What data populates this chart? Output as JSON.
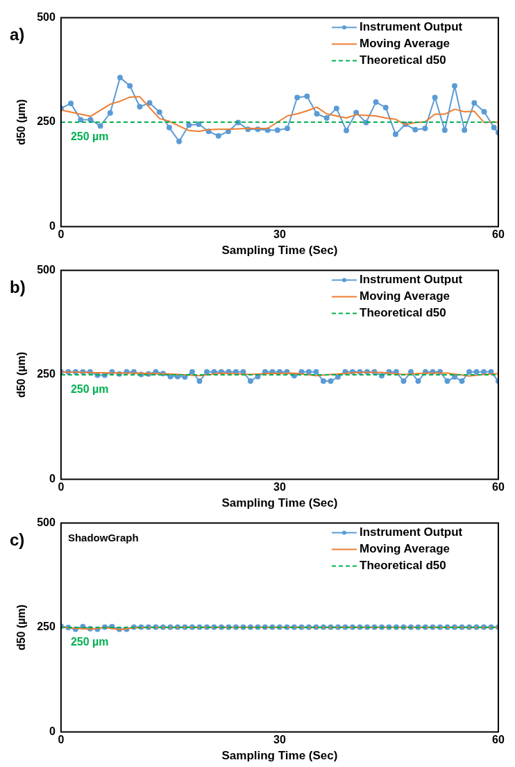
{
  "chart_data": [
    {
      "type": "line",
      "title": "a)",
      "xlabel": "Sampling Time (Sec)",
      "ylabel": "d50 (µm)",
      "xlim": [
        0,
        60
      ],
      "xticks": [
        0,
        30,
        60
      ],
      "ylim": [
        0,
        500
      ],
      "yticks": [
        0,
        250,
        500
      ],
      "grid": false,
      "legend": "top right",
      "annotations": [
        {
          "text": "250 µm",
          "y": 250
        }
      ],
      "series": [
        {
          "name": "Instrument Output",
          "color": "#5b9bd5",
          "marker": "circle",
          "line_style": "solid",
          "x": [
            0,
            1.35,
            2.7,
            4.05,
            5.4,
            6.75,
            8.1,
            9.45,
            10.8,
            12.15,
            13.5,
            14.85,
            16.2,
            17.55,
            18.9,
            20.25,
            21.6,
            22.95,
            24.3,
            25.65,
            27,
            28.35,
            29.7,
            31.05,
            32.4,
            33.75,
            35.1,
            36.45,
            37.8,
            39.15,
            40.5,
            41.85,
            43.2,
            44.55,
            45.9,
            47.25,
            48.6,
            49.95,
            51.3,
            52.65,
            54,
            55.35,
            56.7,
            58.05,
            59.4,
            60
          ],
          "values": [
            283,
            295,
            256,
            256,
            241,
            272,
            357,
            337,
            287,
            296,
            274,
            237,
            204,
            243,
            245,
            228,
            217,
            228,
            249,
            233,
            233,
            231,
            231,
            235,
            309,
            312,
            270,
            260,
            283,
            230,
            273,
            249,
            298,
            285,
            221,
            245,
            232,
            235,
            309,
            231,
            337,
            231,
            296,
            275,
            237,
            225
          ]
        },
        {
          "name": "Moving Average",
          "color": "#ed7d31",
          "marker": "none",
          "line_style": "solid",
          "x": [
            0,
            4.05,
            6.75,
            8.1,
            9.45,
            10.8,
            13.5,
            14.85,
            17.55,
            18.9,
            20.25,
            21.6,
            22.95,
            25.65,
            28.35,
            31.05,
            32.4,
            33.75,
            35.1,
            36.45,
            37.8,
            39.15,
            40.5,
            41.85,
            43.2,
            44.55,
            45.9,
            47.25,
            48.6,
            49.95,
            51.3,
            52.65,
            54,
            55.35,
            56.7,
            58.05,
            59.4,
            60
          ],
          "values": [
            279,
            264,
            293,
            300,
            310,
            311,
            259,
            252,
            230,
            228,
            232,
            233,
            233,
            235,
            235,
            265,
            270,
            277,
            286,
            270,
            265,
            260,
            268,
            266,
            265,
            260,
            257,
            244,
            249,
            251,
            269,
            269,
            281,
            275,
            276,
            249,
            251,
            249
          ]
        },
        {
          "name": "Theoretical d50",
          "color": "#00b050",
          "marker": "none",
          "line_style": "dashed",
          "x": [
            0,
            60
          ],
          "values": [
            250,
            250
          ]
        }
      ]
    },
    {
      "type": "line",
      "title": "b)",
      "xlabel": "Sampling Time (Sec)",
      "ylabel": "d50 (µm)",
      "xlim": [
        0,
        60
      ],
      "xticks": [
        0,
        30,
        60
      ],
      "ylim": [
        0,
        500
      ],
      "yticks": [
        0,
        250,
        500
      ],
      "grid": false,
      "legend": "top right",
      "annotations": [
        {
          "text": "250 µm",
          "y": 250
        }
      ],
      "series": [
        {
          "name": "Instrument Output",
          "color": "#5b9bd5",
          "marker": "circle",
          "line_style": "solid",
          "x": [
            0,
            1,
            2,
            3,
            4,
            5,
            6,
            7,
            8,
            9,
            10,
            11,
            12,
            13,
            14,
            15,
            16,
            17,
            18,
            19,
            20,
            21,
            22,
            23,
            24,
            25,
            26,
            27,
            28,
            29,
            30,
            31,
            32,
            33,
            34,
            35,
            36,
            37,
            38,
            39,
            40,
            41,
            42,
            43,
            44,
            45,
            46,
            47,
            48,
            49,
            50,
            51,
            52,
            53,
            54,
            55,
            56,
            57,
            58,
            59,
            60
          ],
          "values": [
            257,
            257,
            257,
            257,
            257,
            249,
            249,
            257,
            252,
            257,
            257,
            251,
            252,
            257,
            253,
            246,
            246,
            245,
            257,
            235,
            257,
            257,
            257,
            257,
            257,
            257,
            235,
            246,
            257,
            257,
            257,
            257,
            248,
            257,
            257,
            257,
            235,
            235,
            245,
            257,
            257,
            257,
            257,
            257,
            248,
            257,
            257,
            235,
            257,
            235,
            257,
            257,
            257,
            235,
            245,
            235,
            257,
            257,
            257,
            257,
            235
          ]
        },
        {
          "name": "Moving Average",
          "color": "#ed7d31",
          "marker": "none",
          "line_style": "solid",
          "x": [
            0,
            5,
            10,
            15,
            19,
            22,
            26,
            28,
            32,
            35,
            38,
            41,
            44,
            47,
            50,
            53,
            56,
            58,
            60
          ],
          "values": [
            257,
            255,
            254,
            252,
            248,
            254,
            251,
            253,
            254,
            248,
            252,
            256,
            256,
            251,
            254,
            254,
            247,
            251,
            253
          ]
        },
        {
          "name": "Theoretical d50",
          "color": "#00b050",
          "marker": "none",
          "line_style": "dashed",
          "x": [
            0,
            60
          ],
          "values": [
            250,
            250
          ]
        }
      ]
    },
    {
      "type": "line",
      "title": "c)",
      "subtitle": "ShadowGraph",
      "xlabel": "Sampling Time (Sec)",
      "ylabel": "d50 (µm)",
      "xlim": [
        0,
        60
      ],
      "xticks": [
        0,
        30,
        60
      ],
      "ylim": [
        0,
        500
      ],
      "yticks": [
        0,
        250,
        500
      ],
      "grid": false,
      "legend": "top right",
      "annotations": [
        {
          "text": "250 µm",
          "y": 250
        }
      ],
      "series": [
        {
          "name": "Instrument Output",
          "color": "#5b9bd5",
          "marker": "circle",
          "line_style": "solid",
          "x": [
            0,
            1,
            2,
            3,
            4,
            5,
            6,
            7,
            8,
            9,
            10,
            11,
            12,
            13,
            14,
            15,
            16,
            17,
            18,
            19,
            20,
            21,
            22,
            23,
            24,
            25,
            26,
            27,
            28,
            29,
            30,
            31,
            32,
            33,
            34,
            35,
            36,
            37,
            38,
            39,
            40,
            41,
            42,
            43,
            44,
            45,
            46,
            47,
            48,
            49,
            50,
            51,
            52,
            53,
            54,
            55,
            56,
            57,
            58,
            59,
            60
          ],
          "values": [
            253,
            250,
            246,
            252,
            247,
            246,
            251,
            252,
            246,
            246,
            251,
            251,
            251,
            251,
            251,
            251,
            251,
            251,
            251,
            251,
            251,
            251,
            251,
            251,
            251,
            251,
            251,
            251,
            251,
            251,
            251,
            251,
            251,
            251,
            251,
            251,
            251,
            251,
            251,
            251,
            251,
            251,
            251,
            251,
            251,
            251,
            251,
            251,
            251,
            251,
            251,
            251,
            251,
            251,
            251,
            251,
            251,
            251,
            251,
            251,
            251
          ]
        },
        {
          "name": "Moving Average",
          "color": "#ed7d31",
          "marker": "none",
          "line_style": "solid",
          "x": [
            0,
            2,
            4,
            6,
            8,
            10,
            12,
            60
          ],
          "values": [
            251,
            248,
            246,
            250,
            245,
            249,
            250,
            250
          ]
        },
        {
          "name": "Theoretical d50",
          "color": "#00b050",
          "marker": "none",
          "line_style": "dashed",
          "x": [
            0,
            60
          ],
          "values": [
            250,
            250
          ]
        }
      ]
    }
  ]
}
